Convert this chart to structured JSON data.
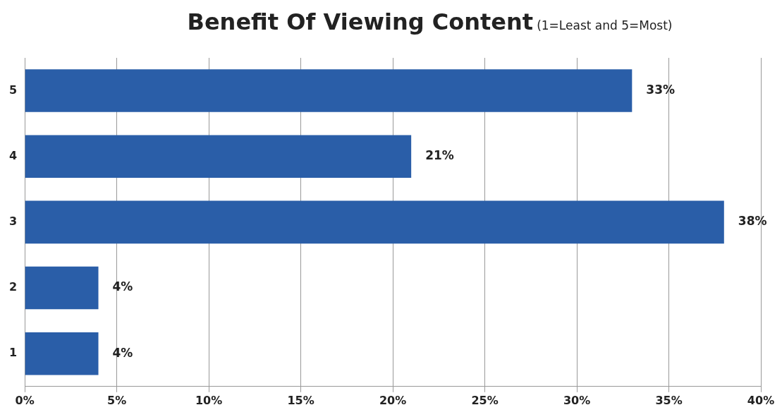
{
  "chart_data": {
    "type": "bar",
    "orientation": "horizontal",
    "title": "Benefit Of Viewing Content",
    "subtitle": "(1=Least and 5=Most)",
    "categories": [
      "5",
      "4",
      "3",
      "2",
      "1"
    ],
    "values": [
      33,
      21,
      38,
      4,
      4
    ],
    "value_labels": [
      "33%",
      "21%",
      "38%",
      "4%",
      "4%"
    ],
    "color": "#2a5ea8",
    "xlim": [
      0,
      40
    ],
    "xticks": [
      {
        "value": 0,
        "label": "0%"
      },
      {
        "value": 5,
        "label": "5%"
      },
      {
        "value": 10,
        "label": "10%"
      },
      {
        "value": 15,
        "label": "15%"
      },
      {
        "value": 20,
        "label": "20%"
      },
      {
        "value": 25,
        "label": "25%"
      },
      {
        "value": 30,
        "label": "30%"
      },
      {
        "value": 35,
        "label": "35%"
      },
      {
        "value": 40,
        "label": "40%"
      }
    ],
    "grid": "x",
    "legend": false
  }
}
